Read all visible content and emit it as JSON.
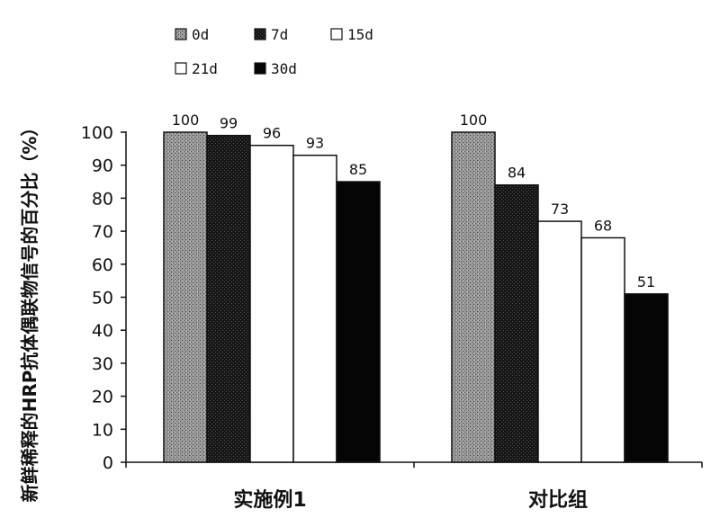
{
  "chart_data": {
    "type": "bar",
    "ylabel": "新鲜稀释的HRP抗体偶联物信号的百分比（%）",
    "xlabel": "",
    "ylim": [
      0,
      100
    ],
    "yticks": [
      0,
      10,
      20,
      30,
      40,
      50,
      60,
      70,
      80,
      90,
      100
    ],
    "categories": [
      "实施例1",
      "对比组"
    ],
    "series": [
      {
        "name": "0d",
        "values": [
          100,
          100
        ],
        "fill": "#8f8f8f",
        "pattern": "stipple"
      },
      {
        "name": "7d",
        "values": [
          99,
          84
        ],
        "fill": "#1c1c1c",
        "pattern": "dark-stipple"
      },
      {
        "name": "15d",
        "values": [
          96,
          73
        ],
        "fill": "#ffffff",
        "pattern": "none"
      },
      {
        "name": "21d",
        "values": [
          93,
          68
        ],
        "fill": "#ffffff",
        "pattern": "none"
      },
      {
        "name": "30d",
        "values": [
          85,
          51
        ],
        "fill": "#050505",
        "pattern": "none"
      }
    ],
    "legend_position": "top-left",
    "grid": false
  }
}
